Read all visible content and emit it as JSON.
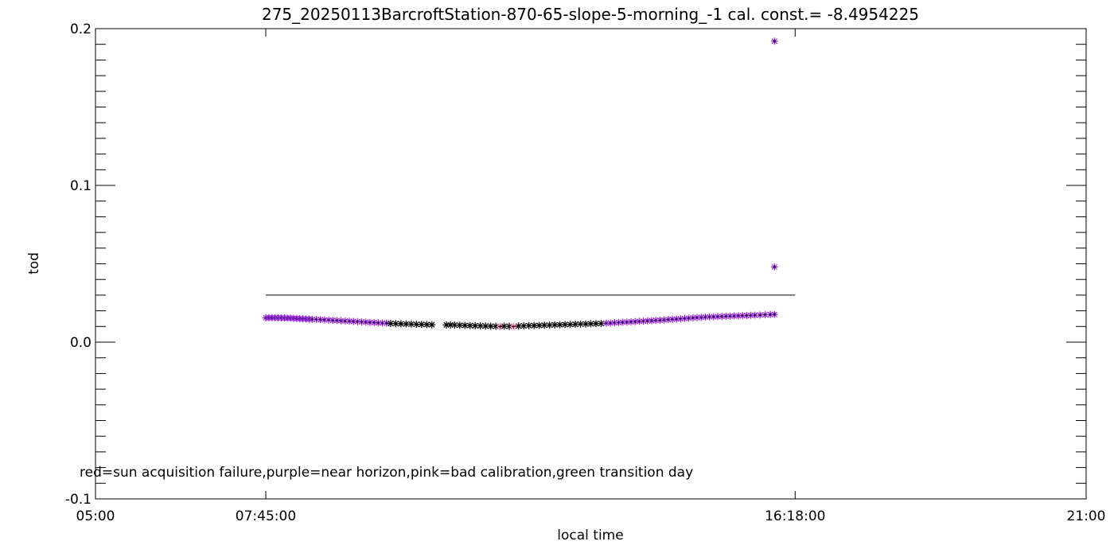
{
  "chart_data": {
    "type": "scatter",
    "title": "275_20250113BarcroftStation-870-65-slope-5-morning_-1 cal. const.= -8.4954225",
    "xlabel": "local time",
    "ylabel": "tod",
    "xlim": [
      "05:00",
      "21:00"
    ],
    "ylim": [
      -0.1,
      0.2
    ],
    "x_tick_labels": [
      "05:00",
      "07:45:00",
      "16:18:00",
      "21:00"
    ],
    "y_tick_labels": [
      "-0.1",
      "0.0",
      "0.1",
      "0.2"
    ],
    "y_tick_values": [
      -0.1,
      0.0,
      0.1,
      0.2
    ],
    "y_minor_step": 0.01,
    "threshold_line": {
      "y": 0.03,
      "x_start": "07:45",
      "x_end": "16:18"
    },
    "legend_text": "red=sun acquisition failure,purple=near horizon,pink=bad calibration,green transition day",
    "colors": {
      "axes": "#000000",
      "normal": "#000000",
      "near_horizon": "#a020f0",
      "sun_failure": "#ff0000",
      "bad_calibration": "#ff69b4"
    },
    "grid": false,
    "series": [
      {
        "name": "",
        "marker": "asterisk",
        "points": [
          [
            "07:45",
            0.0155,
            "purple"
          ],
          [
            "07:48",
            0.0156,
            "purple"
          ],
          [
            "07:51",
            0.0156,
            "purple"
          ],
          [
            "07:54",
            0.0156,
            "purple"
          ],
          [
            "07:57",
            0.0155,
            "purple"
          ],
          [
            "08:00",
            0.0155,
            "purple"
          ],
          [
            "08:03",
            0.0154,
            "purple"
          ],
          [
            "08:06",
            0.0154,
            "purple"
          ],
          [
            "08:09",
            0.0153,
            "purple"
          ],
          [
            "08:12",
            0.0152,
            "purple"
          ],
          [
            "08:15",
            0.0151,
            "purple"
          ],
          [
            "08:18",
            0.015,
            "purple"
          ],
          [
            "08:21",
            0.0149,
            "purple"
          ],
          [
            "08:24",
            0.0148,
            "purple"
          ],
          [
            "08:27",
            0.0147,
            "purple"
          ],
          [
            "08:30",
            0.0146,
            "purple"
          ],
          [
            "08:34",
            0.0145,
            "purple"
          ],
          [
            "08:38",
            0.0144,
            "purple"
          ],
          [
            "08:42",
            0.0142,
            "purple"
          ],
          [
            "08:46",
            0.0141,
            "purple"
          ],
          [
            "08:50",
            0.0139,
            "purple"
          ],
          [
            "08:54",
            0.0138,
            "purple"
          ],
          [
            "08:58",
            0.0136,
            "purple"
          ],
          [
            "09:02",
            0.0135,
            "purple"
          ],
          [
            "09:06",
            0.0134,
            "purple"
          ],
          [
            "09:10",
            0.0132,
            "purple"
          ],
          [
            "09:14",
            0.0131,
            "purple"
          ],
          [
            "09:18",
            0.0129,
            "purple"
          ],
          [
            "09:22",
            0.0128,
            "purple"
          ],
          [
            "09:26",
            0.0126,
            "purple"
          ],
          [
            "09:30",
            0.0125,
            "purple"
          ],
          [
            "09:34",
            0.0123,
            "purple"
          ],
          [
            "09:38",
            0.0122,
            "purple"
          ],
          [
            "09:42",
            0.0121,
            "purple"
          ],
          [
            "09:46",
            0.0119,
            "black"
          ],
          [
            "09:51",
            0.0118,
            "black"
          ],
          [
            "09:56",
            0.0117,
            "black"
          ],
          [
            "10:01",
            0.0116,
            "black"
          ],
          [
            "10:06",
            0.0115,
            "black"
          ],
          [
            "10:11",
            0.0114,
            "black"
          ],
          [
            "10:16",
            0.0113,
            "black"
          ],
          [
            "10:21",
            0.0112,
            "black"
          ],
          [
            "10:26",
            0.0111,
            "black"
          ],
          [
            "10:40",
            0.011,
            "black"
          ],
          [
            "10:44",
            0.011,
            "black"
          ],
          [
            "10:48",
            0.0109,
            "black"
          ],
          [
            "10:53",
            0.0108,
            "black"
          ],
          [
            "10:58",
            0.0107,
            "black"
          ],
          [
            "11:03",
            0.0106,
            "black"
          ],
          [
            "11:08",
            0.0105,
            "black"
          ],
          [
            "11:13",
            0.0104,
            "black"
          ],
          [
            "11:18",
            0.0103,
            "black"
          ],
          [
            "11:23",
            0.0102,
            "black"
          ],
          [
            "11:28",
            0.0101,
            "black"
          ],
          [
            "11:32",
            0.0099,
            "pink"
          ],
          [
            "11:36",
            0.0102,
            "black"
          ],
          [
            "11:41",
            0.0101,
            "black"
          ],
          [
            "11:45",
            0.0099,
            "pink"
          ],
          [
            "11:50",
            0.0103,
            "black"
          ],
          [
            "11:55",
            0.0104,
            "black"
          ],
          [
            "12:00",
            0.0105,
            "black"
          ],
          [
            "12:05",
            0.0106,
            "black"
          ],
          [
            "12:10",
            0.0107,
            "black"
          ],
          [
            "12:15",
            0.0108,
            "black"
          ],
          [
            "12:20",
            0.0109,
            "black"
          ],
          [
            "12:25",
            0.011,
            "black"
          ],
          [
            "12:30",
            0.0111,
            "black"
          ],
          [
            "12:35",
            0.0112,
            "black"
          ],
          [
            "12:40",
            0.0113,
            "black"
          ],
          [
            "12:45",
            0.0114,
            "black"
          ],
          [
            "12:50",
            0.0115,
            "black"
          ],
          [
            "12:55",
            0.0116,
            "black"
          ],
          [
            "13:00",
            0.0117,
            "black"
          ],
          [
            "13:05",
            0.0118,
            "black"
          ],
          [
            "13:10",
            0.0119,
            "black"
          ],
          [
            "13:15",
            0.0121,
            "purple"
          ],
          [
            "13:19",
            0.0122,
            "purple"
          ],
          [
            "13:23",
            0.0124,
            "purple"
          ],
          [
            "13:27",
            0.0125,
            "purple"
          ],
          [
            "13:31",
            0.0127,
            "purple"
          ],
          [
            "13:35",
            0.0128,
            "purple"
          ],
          [
            "13:39",
            0.013,
            "purple"
          ],
          [
            "13:43",
            0.0131,
            "purple"
          ],
          [
            "13:47",
            0.0133,
            "purple"
          ],
          [
            "13:51",
            0.0134,
            "purple"
          ],
          [
            "13:55",
            0.0136,
            "purple"
          ],
          [
            "13:59",
            0.0137,
            "purple"
          ],
          [
            "14:03",
            0.0139,
            "purple"
          ],
          [
            "14:07",
            0.014,
            "purple"
          ],
          [
            "14:11",
            0.0142,
            "purple"
          ],
          [
            "14:15",
            0.0144,
            "purple"
          ],
          [
            "14:19",
            0.0146,
            "purple"
          ],
          [
            "14:23",
            0.0147,
            "purple"
          ],
          [
            "14:27",
            0.0149,
            "purple"
          ],
          [
            "14:31",
            0.0151,
            "purple"
          ],
          [
            "14:35",
            0.0153,
            "purple"
          ],
          [
            "14:39",
            0.0155,
            "purple"
          ],
          [
            "14:43",
            0.0157,
            "purple"
          ],
          [
            "14:47",
            0.0158,
            "purple"
          ],
          [
            "14:51",
            0.016,
            "purple"
          ],
          [
            "14:55",
            0.0161,
            "purple"
          ],
          [
            "14:59",
            0.0162,
            "purple"
          ],
          [
            "15:03",
            0.0163,
            "purple"
          ],
          [
            "15:07",
            0.0164,
            "purple"
          ],
          [
            "15:11",
            0.0165,
            "purple"
          ],
          [
            "15:15",
            0.0166,
            "purple"
          ],
          [
            "15:19",
            0.0167,
            "purple"
          ],
          [
            "15:23",
            0.0168,
            "purple"
          ],
          [
            "15:27",
            0.0169,
            "purple"
          ],
          [
            "15:31",
            0.017,
            "purple"
          ],
          [
            "15:35",
            0.0171,
            "purple"
          ],
          [
            "15:39",
            0.0172,
            "purple"
          ],
          [
            "15:44",
            0.0173,
            "purple"
          ],
          [
            "15:49",
            0.0175,
            "purple"
          ],
          [
            "15:54",
            0.0176,
            "purple"
          ],
          [
            "15:58",
            0.0177,
            "purple"
          ],
          [
            "15:58",
            0.048,
            "purple"
          ],
          [
            "15:58",
            0.192,
            "purple"
          ]
        ]
      }
    ]
  }
}
